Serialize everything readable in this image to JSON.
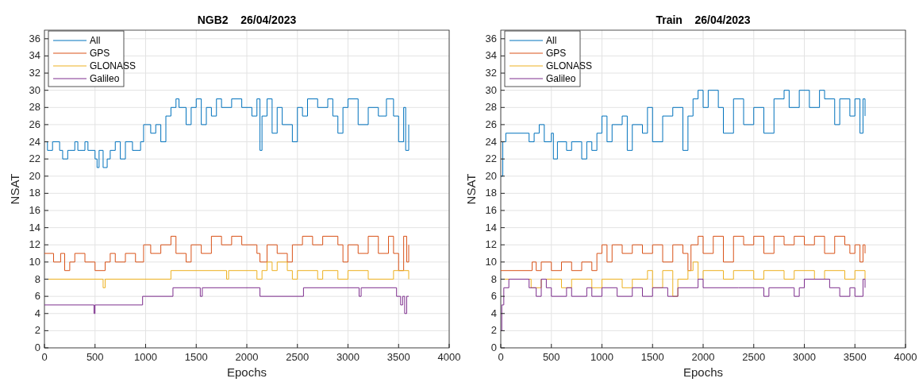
{
  "chart_data": [
    {
      "type": "step",
      "title": "NGB2    26/04/2023",
      "xlabel": "Epochs",
      "ylabel": "NSAT",
      "xlim": [
        0,
        4000
      ],
      "xticks": [
        0,
        500,
        1000,
        1500,
        2000,
        2500,
        3000,
        3500,
        4000
      ],
      "ylim": [
        0,
        37
      ],
      "yticks": [
        0,
        2,
        4,
        6,
        8,
        10,
        12,
        14,
        16,
        18,
        20,
        22,
        24,
        26,
        28,
        30,
        32,
        34,
        36
      ],
      "grid": true,
      "legend": "top left",
      "series": [
        {
          "name": "All",
          "color": "#0072bd",
          "x": [
            0,
            30,
            80,
            150,
            180,
            230,
            300,
            330,
            400,
            430,
            500,
            520,
            540,
            580,
            620,
            650,
            700,
            750,
            800,
            870,
            950,
            980,
            1050,
            1100,
            1150,
            1200,
            1250,
            1300,
            1330,
            1400,
            1450,
            1500,
            1550,
            1600,
            1650,
            1700,
            1750,
            1850,
            1950,
            2050,
            2100,
            2130,
            2150,
            2200,
            2250,
            2300,
            2350,
            2450,
            2500,
            2550,
            2600,
            2700,
            2800,
            2850,
            2900,
            2950,
            3000,
            3100,
            3200,
            3300,
            3380,
            3450,
            3500,
            3550,
            3570,
            3600
          ],
          "values": [
            24,
            23,
            24,
            23,
            22,
            23,
            24,
            23,
            24,
            23,
            22,
            21,
            23,
            21,
            22,
            23,
            24,
            22,
            24,
            23,
            24,
            26,
            25,
            26,
            24,
            27,
            28,
            29,
            28,
            26,
            28,
            29,
            26,
            28,
            27,
            29,
            28,
            29,
            28,
            27,
            29,
            23,
            27,
            29,
            25,
            28,
            26,
            24,
            28,
            27,
            29,
            28,
            29,
            27,
            25,
            28,
            29,
            26,
            28,
            27,
            29,
            27,
            24,
            28,
            23,
            26
          ]
        },
        {
          "name": "GPS",
          "color": "#d95319",
          "x": [
            0,
            90,
            160,
            200,
            250,
            300,
            400,
            500,
            600,
            650,
            700,
            800,
            900,
            980,
            1050,
            1150,
            1250,
            1300,
            1400,
            1450,
            1550,
            1650,
            1750,
            1850,
            1950,
            2100,
            2130,
            2200,
            2300,
            2400,
            2450,
            2550,
            2650,
            2750,
            2900,
            2950,
            3000,
            3100,
            3200,
            3300,
            3400,
            3450,
            3500,
            3550,
            3580,
            3600
          ],
          "values": [
            11,
            10,
            11,
            9,
            10,
            11,
            10,
            9,
            10,
            11,
            10,
            11,
            10,
            12,
            11,
            12,
            13,
            11,
            10,
            12,
            11,
            13,
            12,
            13,
            12,
            11,
            10,
            12,
            11,
            10,
            12,
            13,
            12,
            13,
            12,
            10,
            12,
            11,
            13,
            11,
            13,
            11,
            9,
            13,
            10,
            12
          ]
        },
        {
          "name": "GLONASS",
          "color": "#edb120",
          "x": [
            0,
            580,
            600,
            1250,
            1800,
            1820,
            2100,
            2150,
            2200,
            2250,
            2300,
            2400,
            2450,
            2500,
            2700,
            2750,
            2900,
            3000,
            3200,
            3450,
            3600
          ],
          "values": [
            8,
            7,
            8,
            9,
            8,
            9,
            8,
            9,
            10,
            9,
            10,
            9,
            8,
            9,
            8,
            9,
            8,
            9,
            8,
            9,
            8
          ]
        },
        {
          "name": "Galileo",
          "color": "#7e2f8e",
          "x": [
            0,
            490,
            500,
            970,
            1270,
            1540,
            1560,
            2130,
            2560,
            3110,
            3130,
            3480,
            3520,
            3540,
            3560,
            3580,
            3600
          ],
          "values": [
            5,
            4,
            5,
            6,
            7,
            6,
            7,
            6,
            7,
            6,
            7,
            6,
            5,
            6,
            4,
            6,
            6
          ]
        }
      ]
    },
    {
      "type": "step",
      "title": "Train    26/04/2023",
      "xlabel": "Epochs",
      "ylabel": "NSAT",
      "xlim": [
        0,
        4000
      ],
      "xticks": [
        0,
        500,
        1000,
        1500,
        2000,
        2500,
        3000,
        3500,
        4000
      ],
      "ylim": [
        0,
        37
      ],
      "yticks": [
        0,
        2,
        4,
        6,
        8,
        10,
        12,
        14,
        16,
        18,
        20,
        22,
        24,
        26,
        28,
        30,
        32,
        34,
        36
      ],
      "grid": true,
      "legend": "top left",
      "series": [
        {
          "name": "All",
          "color": "#0072bd",
          "x": [
            0,
            20,
            50,
            280,
            330,
            380,
            430,
            500,
            520,
            560,
            650,
            700,
            800,
            850,
            900,
            950,
            1000,
            1050,
            1100,
            1200,
            1250,
            1300,
            1400,
            1450,
            1500,
            1600,
            1700,
            1800,
            1850,
            1900,
            1950,
            2000,
            2050,
            2150,
            2200,
            2300,
            2400,
            2500,
            2600,
            2700,
            2800,
            2850,
            2950,
            3050,
            3150,
            3200,
            3300,
            3350,
            3450,
            3500,
            3550,
            3580,
            3600
          ],
          "values": [
            20,
            24,
            25,
            24,
            25,
            26,
            24,
            25,
            22,
            24,
            23,
            24,
            22,
            24,
            23,
            25,
            27,
            24,
            26,
            27,
            23,
            26,
            25,
            28,
            24,
            27,
            28,
            23,
            27,
            29,
            30,
            28,
            30,
            28,
            25,
            29,
            26,
            28,
            25,
            29,
            30,
            28,
            30,
            28,
            30,
            29,
            26,
            29,
            27,
            29,
            25,
            29,
            27
          ]
        },
        {
          "name": "GPS",
          "color": "#d95319",
          "x": [
            0,
            310,
            350,
            400,
            500,
            600,
            700,
            800,
            900,
            950,
            1000,
            1050,
            1100,
            1200,
            1300,
            1400,
            1500,
            1600,
            1700,
            1800,
            1850,
            1880,
            1950,
            2000,
            2100,
            2200,
            2300,
            2400,
            2500,
            2600,
            2700,
            2800,
            2900,
            3000,
            3100,
            3200,
            3300,
            3400,
            3450,
            3500,
            3550,
            3580,
            3600
          ],
          "values": [
            9,
            10,
            9,
            10,
            9,
            10,
            9,
            10,
            9,
            11,
            12,
            10,
            12,
            11,
            12,
            11,
            12,
            10,
            12,
            11,
            9,
            12,
            13,
            11,
            13,
            10,
            13,
            12,
            13,
            11,
            13,
            12,
            13,
            12,
            13,
            11,
            13,
            12,
            11,
            12,
            10,
            12,
            11
          ]
        },
        {
          "name": "GLONASS",
          "color": "#edb120",
          "x": [
            0,
            300,
            400,
            600,
            700,
            900,
            1000,
            1200,
            1300,
            1450,
            1500,
            1600,
            1700,
            1750,
            1850,
            1900,
            1950,
            2000,
            2200,
            2300,
            2500,
            2600,
            2800,
            2900,
            3100,
            3200,
            3400,
            3500,
            3600
          ],
          "values": [
            8,
            7,
            8,
            7,
            8,
            7,
            8,
            7,
            8,
            9,
            7,
            9,
            6,
            8,
            9,
            10,
            8,
            9,
            8,
            9,
            8,
            9,
            8,
            9,
            8,
            9,
            8,
            9,
            8
          ]
        },
        {
          "name": "Galileo",
          "color": "#7e2f8e",
          "x": [
            0,
            10,
            30,
            80,
            280,
            350,
            400,
            450,
            500,
            650,
            700,
            850,
            900,
            1000,
            1150,
            1300,
            1400,
            1500,
            1650,
            1750,
            1950,
            2000,
            2350,
            2600,
            2650,
            2900,
            2950,
            3000,
            3250,
            3350,
            3450,
            3500,
            3580,
            3600
          ],
          "values": [
            2,
            5,
            7,
            8,
            7,
            6,
            8,
            7,
            6,
            7,
            6,
            7,
            6,
            7,
            6,
            7,
            6,
            7,
            6,
            7,
            8,
            7,
            7,
            6,
            7,
            6,
            7,
            8,
            7,
            6,
            7,
            6,
            8,
            7
          ]
        }
      ]
    }
  ]
}
